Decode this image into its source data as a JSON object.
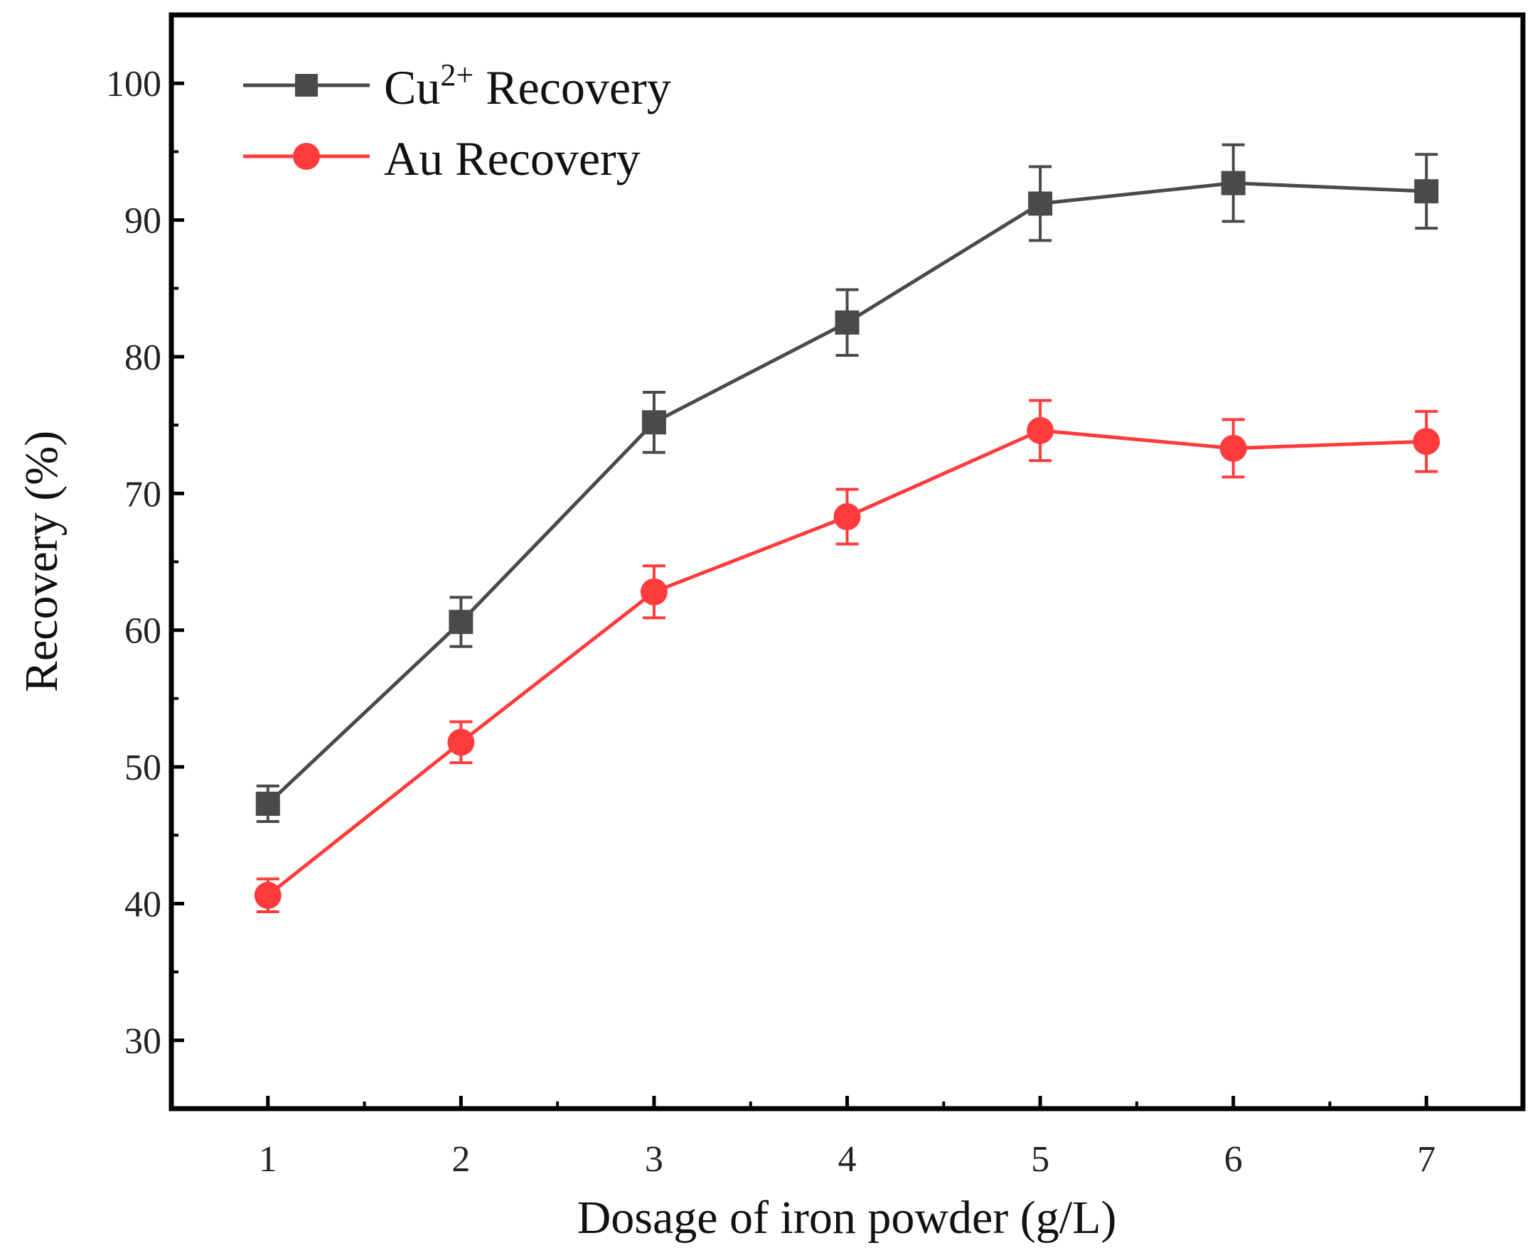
{
  "chart_data": {
    "type": "line",
    "xlabel": "Dosage of iron powder (g/L)",
    "ylabel": "Recovery (%)",
    "xlim": [
      0.5,
      7.5
    ],
    "ylim": [
      25,
      105
    ],
    "x": [
      1,
      2,
      3,
      4,
      5,
      6,
      7
    ],
    "xticks": [
      "1",
      "2",
      "3",
      "4",
      "5",
      "6",
      "7"
    ],
    "yticks": [
      "30",
      "40",
      "50",
      "60",
      "70",
      "80",
      "90",
      "100"
    ],
    "grid": false,
    "legend_position": "top-left",
    "series": [
      {
        "name_base": "Cu",
        "name_sup": "2+",
        "name_rest": " Recovery",
        "color": "#4a4a4a",
        "marker": "square",
        "values": [
          47.3,
          60.6,
          75.2,
          82.5,
          91.2,
          92.7,
          92.1
        ],
        "error": [
          1.3,
          1.8,
          2.2,
          2.4,
          2.7,
          2.8,
          2.7
        ]
      },
      {
        "name": "Au Recovery",
        "color": "#ff3b3b",
        "marker": "circle",
        "values": [
          40.6,
          51.8,
          62.8,
          68.3,
          74.6,
          73.3,
          73.8
        ],
        "error": [
          1.2,
          1.5,
          1.9,
          2.0,
          2.2,
          2.1,
          2.2
        ]
      }
    ]
  }
}
